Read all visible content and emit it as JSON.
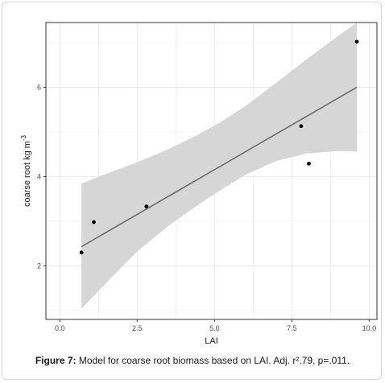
{
  "caption": {
    "label": "Figure 7:",
    "text": " Model for coarse root biomass based on LAI. Adj. r².79, p=.011."
  },
  "colors": {
    "panel_border": "#333333",
    "grid_major": "#ebebeb",
    "ribbon": "#d6d6d6",
    "line": "#6b6b6b",
    "point": "#000000"
  },
  "chart_data": {
    "type": "scatter",
    "xlabel": "LAI",
    "ylabel": "coarse root kg m",
    "ylabel_superscript": "-3",
    "xlim": [
      -0.45,
      10.25
    ],
    "ylim": [
      0.8,
      7.45
    ],
    "xticks": [
      0.0,
      2.5,
      5.0,
      7.5,
      10.0
    ],
    "xtick_labels": [
      "0.0",
      "2.5",
      "5.0",
      "7.5",
      "10.0"
    ],
    "yticks": [
      2,
      4,
      6
    ],
    "ytick_labels": [
      "2",
      "4",
      "6"
    ],
    "grid": true,
    "points": [
      {
        "x": 0.7,
        "y": 2.3
      },
      {
        "x": 1.1,
        "y": 2.98
      },
      {
        "x": 2.8,
        "y": 3.33
      },
      {
        "x": 7.8,
        "y": 5.13
      },
      {
        "x": 8.05,
        "y": 4.29
      },
      {
        "x": 9.6,
        "y": 7.02
      }
    ],
    "fit_line": {
      "x": [
        0.7,
        9.6
      ],
      "y": [
        2.43,
        6.0
      ]
    },
    "confidence_band": {
      "x": [
        0.7,
        1.5,
        2.5,
        3.5,
        4.5,
        5.2,
        6.0,
        7.0,
        8.0,
        9.0,
        9.6
      ],
      "upper": [
        3.84,
        4.06,
        4.32,
        4.61,
        4.95,
        5.22,
        5.58,
        6.1,
        6.64,
        7.15,
        7.45
      ],
      "lower": [
        1.04,
        1.62,
        2.32,
        2.89,
        3.38,
        3.7,
        4.04,
        4.35,
        4.52,
        4.57,
        4.56
      ]
    }
  }
}
